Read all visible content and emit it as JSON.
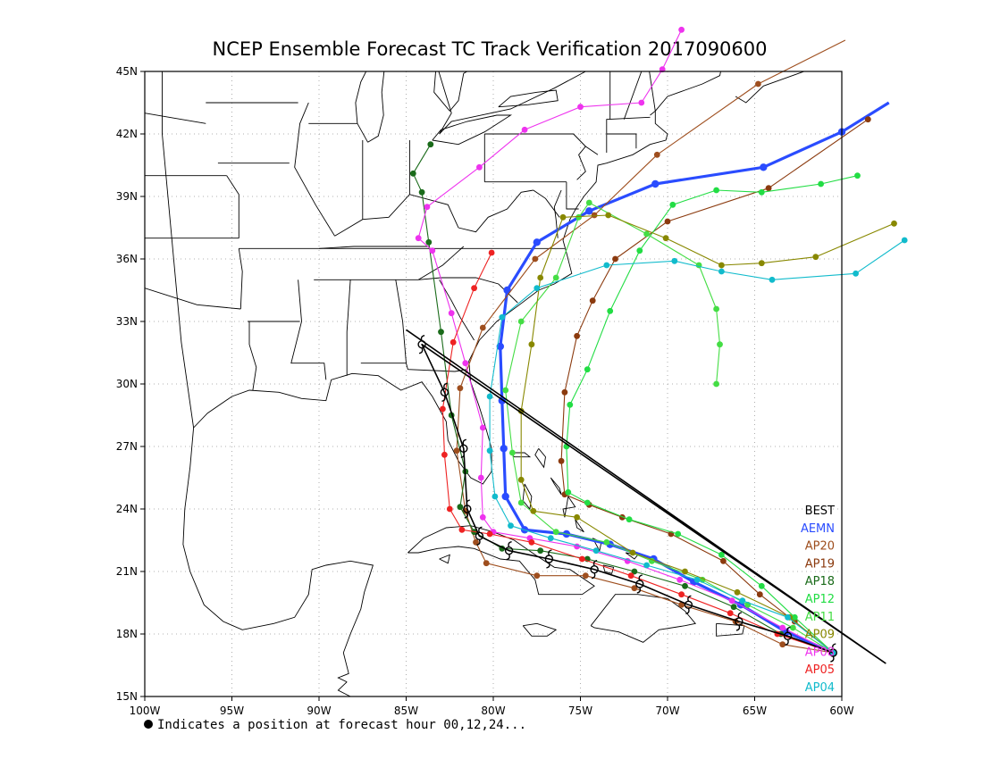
{
  "title": "NCEP Ensemble Forecast TC Track Verification 2017090600",
  "footnote": "Indicates a position at forecast hour 00,12,24...",
  "axes": {
    "lon_range": [
      -100,
      -60
    ],
    "lat_range": [
      15,
      45
    ],
    "x_ticks": [
      {
        "value": -100,
        "label": "100W"
      },
      {
        "value": -95,
        "label": "95W"
      },
      {
        "value": -90,
        "label": "90W"
      },
      {
        "value": -85,
        "label": "85W"
      },
      {
        "value": -80,
        "label": "80W"
      },
      {
        "value": -75,
        "label": "75W"
      },
      {
        "value": -70,
        "label": "70W"
      },
      {
        "value": -65,
        "label": "65W"
      },
      {
        "value": -60,
        "label": "60W"
      }
    ],
    "y_ticks": [
      {
        "value": 15,
        "label": "15N"
      },
      {
        "value": 18,
        "label": "18N"
      },
      {
        "value": 21,
        "label": "21N"
      },
      {
        "value": 24,
        "label": "24N"
      },
      {
        "value": 27,
        "label": "27N"
      },
      {
        "value": 30,
        "label": "30N"
      },
      {
        "value": 33,
        "label": "33N"
      },
      {
        "value": 36,
        "label": "36N"
      },
      {
        "value": 39,
        "label": "39N"
      },
      {
        "value": 42,
        "label": "42N"
      },
      {
        "value": 45,
        "label": "45N"
      }
    ],
    "grid": "dotted"
  },
  "chart_data": {
    "type": "line",
    "x_unit": "longitude (deg, negative = W)",
    "y_unit": "latitude (deg N)",
    "legend": {
      "position": "bottom-right"
    },
    "series": [
      {
        "name": "BEST",
        "color": "#000000",
        "marker": "hurricane",
        "points": [
          [
            -60.5,
            17.1
          ],
          [
            -63.1,
            17.9
          ],
          [
            -65.9,
            18.6
          ],
          [
            -68.8,
            19.4
          ],
          [
            -71.6,
            20.4
          ],
          [
            -74.2,
            21.1
          ],
          [
            -76.8,
            21.6
          ],
          [
            -79.1,
            22.0
          ],
          [
            -80.8,
            22.7
          ],
          [
            -81.5,
            24.0
          ],
          [
            -81.7,
            26.9
          ],
          [
            -82.8,
            29.6
          ],
          [
            -84.1,
            31.9
          ]
        ],
        "extra_points": [
          [
            -57.5,
            16.6
          ],
          [
            -85.0,
            32.6
          ]
        ]
      },
      {
        "name": "AEMN",
        "color": "#2a4cff",
        "points": [
          [
            -60.5,
            17.1
          ],
          [
            -63.2,
            18.1
          ],
          [
            -65.8,
            19.4
          ],
          [
            -68.5,
            20.5
          ],
          [
            -70.8,
            21.6
          ],
          [
            -73.3,
            22.3
          ],
          [
            -75.8,
            22.8
          ],
          [
            -78.2,
            23.0
          ],
          [
            -79.3,
            24.6
          ],
          [
            -79.4,
            26.9
          ],
          [
            -79.5,
            29.2
          ],
          [
            -79.6,
            31.8
          ],
          [
            -79.2,
            34.5
          ],
          [
            -77.5,
            36.8
          ],
          [
            -74.5,
            38.3
          ],
          [
            -70.7,
            39.6
          ],
          [
            -64.5,
            40.4
          ],
          [
            -60.0,
            42.1
          ]
        ],
        "extra_points": [
          [
            -57.3,
            43.5
          ]
        ]
      },
      {
        "name": "AP20",
        "color": "#9e4e1e",
        "points": [
          [
            -60.5,
            17.1
          ],
          [
            -63.4,
            17.5
          ],
          [
            -66.1,
            18.6
          ],
          [
            -69.2,
            19.4
          ],
          [
            -71.9,
            20.2
          ],
          [
            -74.7,
            20.8
          ],
          [
            -77.5,
            20.8
          ],
          [
            -80.4,
            21.4
          ],
          [
            -81.0,
            22.4
          ],
          [
            -81.6,
            23.9
          ],
          [
            -82.1,
            26.8
          ],
          [
            -81.9,
            29.8
          ],
          [
            -80.6,
            32.7
          ],
          [
            -77.6,
            36.0
          ],
          [
            -74.2,
            38.1
          ],
          [
            -70.6,
            41.0
          ],
          [
            -64.8,
            44.4
          ]
        ],
        "extra_points": [
          [
            -59.8,
            46.5
          ]
        ]
      },
      {
        "name": "AP19",
        "color": "#8b3a0e",
        "points": [
          [
            -60.5,
            17.1
          ],
          [
            -62.7,
            18.6
          ],
          [
            -64.7,
            19.9
          ],
          [
            -66.8,
            21.5
          ],
          [
            -69.8,
            22.8
          ],
          [
            -72.6,
            23.6
          ],
          [
            -74.5,
            24.2
          ],
          [
            -75.9,
            24.7
          ],
          [
            -76.1,
            26.3
          ],
          [
            -75.9,
            29.6
          ],
          [
            -75.2,
            32.3
          ],
          [
            -74.3,
            34.0
          ],
          [
            -73.0,
            36.0
          ],
          [
            -70.0,
            37.8
          ],
          [
            -64.2,
            39.4
          ],
          [
            -58.5,
            42.7
          ]
        ]
      },
      {
        "name": "AP18",
        "color": "#1a6b1a",
        "points": [
          [
            -60.5,
            17.1
          ],
          [
            -63.5,
            18.0
          ],
          [
            -66.2,
            19.3
          ],
          [
            -69.0,
            20.3
          ],
          [
            -71.9,
            21.0
          ],
          [
            -74.6,
            21.6
          ],
          [
            -77.3,
            22.0
          ],
          [
            -79.5,
            22.1
          ],
          [
            -81.1,
            22.9
          ],
          [
            -81.9,
            24.1
          ],
          [
            -81.6,
            25.8
          ],
          [
            -82.4,
            28.5
          ],
          [
            -83.0,
            32.5
          ],
          [
            -83.7,
            36.8
          ],
          [
            -84.1,
            39.2
          ],
          [
            -84.6,
            40.1
          ],
          [
            -83.6,
            41.5
          ]
        ]
      },
      {
        "name": "AP12",
        "color": "#22dd44",
        "points": [
          [
            -60.5,
            17.1
          ],
          [
            -62.7,
            18.8
          ],
          [
            -64.6,
            20.3
          ],
          [
            -66.9,
            21.8
          ],
          [
            -69.4,
            22.8
          ],
          [
            -72.2,
            23.5
          ],
          [
            -74.6,
            24.3
          ],
          [
            -75.7,
            24.8
          ],
          [
            -75.8,
            27.0
          ],
          [
            -75.6,
            29.0
          ],
          [
            -74.6,
            30.7
          ],
          [
            -73.3,
            33.5
          ],
          [
            -71.6,
            36.4
          ],
          [
            -69.7,
            38.6
          ],
          [
            -67.2,
            39.3
          ],
          [
            -64.6,
            39.2
          ],
          [
            -61.2,
            39.6
          ],
          [
            -59.1,
            40.0
          ]
        ]
      },
      {
        "name": "AP11",
        "color": "#44dd44",
        "points": [
          [
            -60.5,
            17.1
          ],
          [
            -62.8,
            18.3
          ],
          [
            -65.4,
            19.4
          ],
          [
            -68.0,
            20.6
          ],
          [
            -70.9,
            21.5
          ],
          [
            -73.5,
            22.4
          ],
          [
            -76.4,
            22.9
          ],
          [
            -78.4,
            24.3
          ],
          [
            -78.9,
            26.7
          ],
          [
            -79.3,
            29.7
          ],
          [
            -78.4,
            33.0
          ],
          [
            -76.4,
            35.1
          ],
          [
            -75.1,
            38.0
          ],
          [
            -74.5,
            38.7
          ],
          [
            -71.2,
            37.2
          ],
          [
            -68.2,
            35.7
          ],
          [
            -67.2,
            33.6
          ],
          [
            -67.0,
            31.9
          ],
          [
            -67.2,
            30.0
          ]
        ]
      },
      {
        "name": "AP09",
        "color": "#888800",
        "points": [
          [
            -60.5,
            17.1
          ],
          [
            -63.0,
            18.8
          ],
          [
            -66.0,
            20.0
          ],
          [
            -69.0,
            21.0
          ],
          [
            -72.0,
            21.9
          ],
          [
            -75.2,
            23.6
          ],
          [
            -77.7,
            23.9
          ],
          [
            -78.4,
            25.4
          ],
          [
            -78.4,
            28.7
          ],
          [
            -77.8,
            31.9
          ],
          [
            -77.3,
            35.1
          ],
          [
            -76.0,
            38.0
          ],
          [
            -73.4,
            38.1
          ],
          [
            -70.1,
            37.0
          ],
          [
            -66.9,
            35.7
          ],
          [
            -64.6,
            35.8
          ],
          [
            -61.5,
            36.1
          ],
          [
            -57.0,
            37.7
          ]
        ]
      },
      {
        "name": "AP08",
        "color": "#ee33ee",
        "points": [
          [
            -60.5,
            17.1
          ],
          [
            -63.4,
            18.3
          ],
          [
            -66.3,
            19.6
          ],
          [
            -69.3,
            20.6
          ],
          [
            -72.3,
            21.5
          ],
          [
            -75.2,
            22.2
          ],
          [
            -77.9,
            22.6
          ],
          [
            -80.0,
            22.9
          ],
          [
            -80.6,
            23.6
          ],
          [
            -80.7,
            25.5
          ],
          [
            -80.6,
            27.9
          ],
          [
            -81.6,
            31.0
          ],
          [
            -82.4,
            33.4
          ],
          [
            -83.5,
            36.4
          ],
          [
            -84.3,
            37.0
          ],
          [
            -83.8,
            38.5
          ],
          [
            -80.8,
            40.4
          ],
          [
            -78.2,
            42.2
          ],
          [
            -75.0,
            43.3
          ],
          [
            -71.5,
            43.5
          ],
          [
            -70.3,
            45.1
          ],
          [
            -69.2,
            47.0
          ]
        ]
      },
      {
        "name": "AP05",
        "color": "#ee2222",
        "points": [
          [
            -60.5,
            17.1
          ],
          [
            -63.7,
            18.0
          ],
          [
            -66.4,
            19.0
          ],
          [
            -69.2,
            19.9
          ],
          [
            -72.1,
            20.8
          ],
          [
            -74.9,
            21.6
          ],
          [
            -77.8,
            22.4
          ],
          [
            -80.2,
            22.8
          ],
          [
            -81.8,
            23.0
          ],
          [
            -82.5,
            24.0
          ],
          [
            -82.8,
            26.6
          ],
          [
            -82.9,
            28.8
          ],
          [
            -82.3,
            32.0
          ],
          [
            -81.1,
            34.6
          ],
          [
            -80.1,
            36.3
          ]
        ]
      },
      {
        "name": "AP04",
        "color": "#11bbcc",
        "points": [
          [
            -60.5,
            17.1
          ],
          [
            -63.1,
            18.8
          ],
          [
            -65.7,
            19.6
          ],
          [
            -68.3,
            20.6
          ],
          [
            -71.2,
            21.3
          ],
          [
            -74.1,
            22.0
          ],
          [
            -76.7,
            22.6
          ],
          [
            -79.0,
            23.2
          ],
          [
            -79.9,
            24.6
          ],
          [
            -80.2,
            26.8
          ],
          [
            -80.2,
            29.4
          ],
          [
            -79.5,
            33.2
          ],
          [
            -77.5,
            34.6
          ],
          [
            -73.5,
            35.7
          ],
          [
            -69.6,
            35.9
          ],
          [
            -66.9,
            35.4
          ],
          [
            -64.0,
            35.0
          ],
          [
            -59.2,
            35.3
          ],
          [
            -56.4,
            36.9
          ]
        ]
      }
    ]
  },
  "land_fill": "#ffffff",
  "style": {
    "grid_color": "#999999",
    "coast_color": "#000000"
  }
}
